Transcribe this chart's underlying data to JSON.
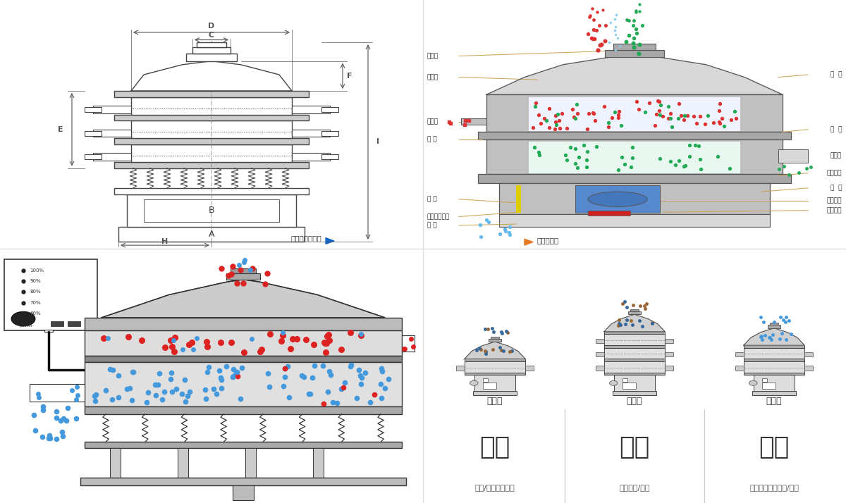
{
  "bg_color": "#ffffff",
  "colors": {
    "red_particle": "#dd2222",
    "blue_particle": "#4499dd",
    "green_particle": "#22aa66",
    "dark_blue_particle": "#336699",
    "brown_particle": "#996633",
    "gray_machine": "#cccccc",
    "dark_gray": "#444444",
    "medium_gray": "#888888",
    "light_gray": "#e8e8e8",
    "line_color": "#c8a050",
    "orange_arrow": "#e87722"
  },
  "top_left": {
    "dim_labels": [
      "D",
      "C",
      "F",
      "E",
      "B",
      "A",
      "H",
      "I"
    ],
    "caption": "外形尺寸示意图"
  },
  "top_right": {
    "left_labels": [
      "进料口",
      "防尘盖",
      "出料口",
      "束 环",
      "弹 簧",
      "运输固定螺栓",
      "机 座"
    ],
    "right_labels": [
      "筛  网",
      "网  架",
      "加重块",
      "上部重锤",
      "筛  盘",
      "振动电机",
      "下部重锤"
    ],
    "caption": "结构示意图"
  },
  "bottom_right": {
    "type_labels": [
      "单层式",
      "三层式",
      "双层式"
    ],
    "main_labels": [
      "分级",
      "过滤",
      "除杂"
    ],
    "sub_labels": [
      "颗粒/粉末准确分级",
      "去除异物/结块",
      "去除液体中的颗粒/异物"
    ],
    "layers": [
      1,
      3,
      2
    ]
  }
}
